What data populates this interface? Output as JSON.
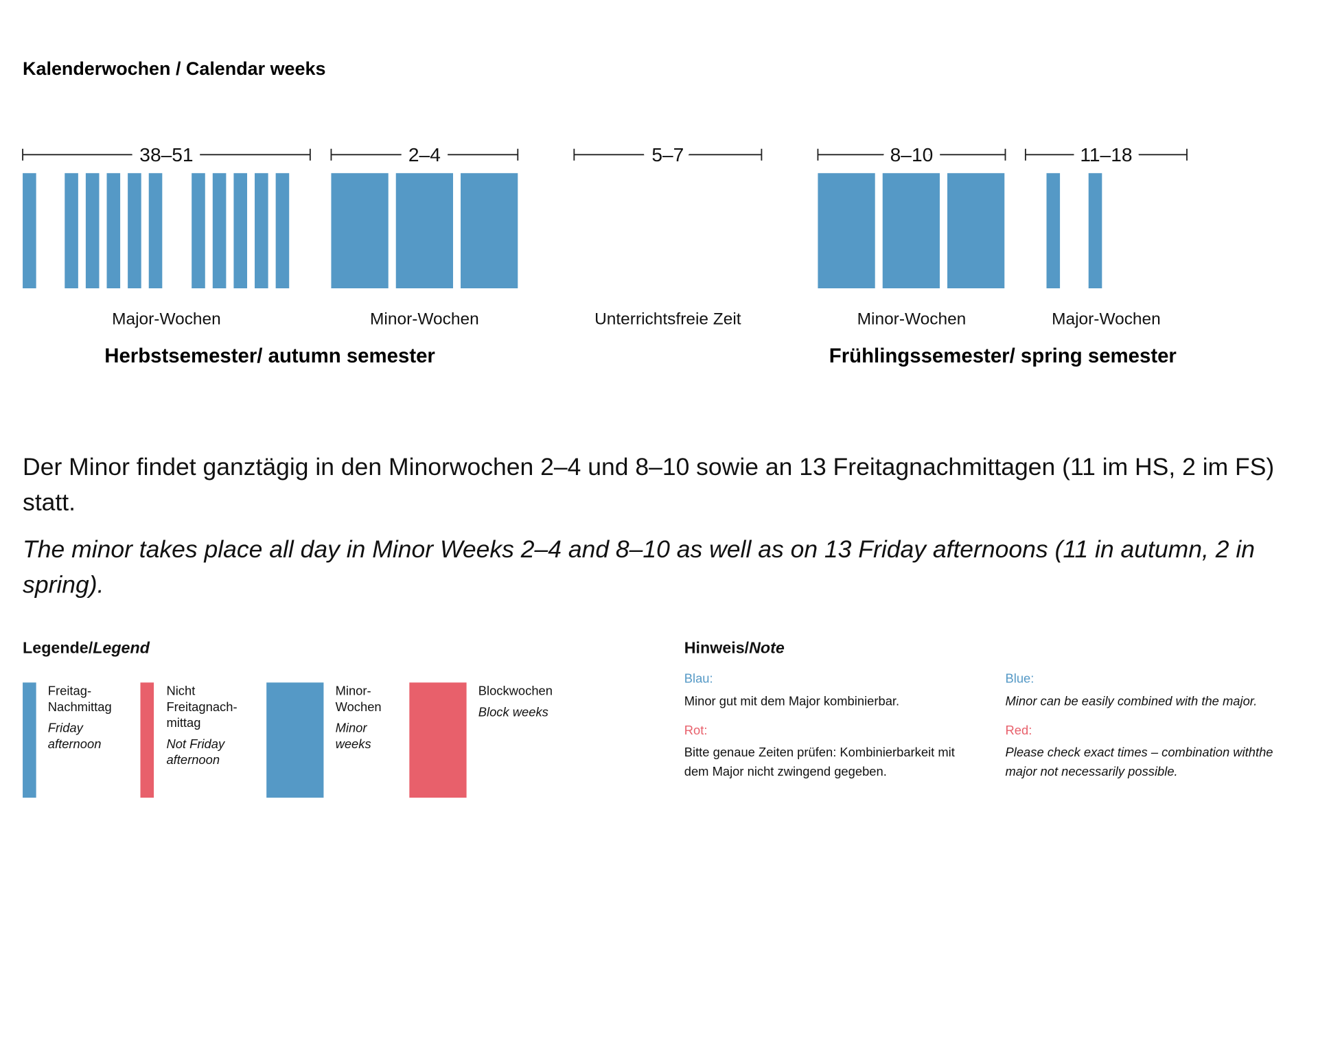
{
  "title": "Kalenderwochen / Calendar weeks",
  "periods": [
    {
      "weeks": "38–51",
      "label": "Major-Wochen"
    },
    {
      "weeks": "2–4",
      "label": "Minor-Wochen"
    },
    {
      "weeks": "5–7",
      "label": "Unterrichtsfreie Zeit"
    },
    {
      "weeks": "8–10",
      "label": "Minor-Wochen"
    },
    {
      "weeks": "11–18",
      "label": "Major-Wochen"
    }
  ],
  "semesters": [
    "Herbstsemester/ autumn semester",
    "Frühlingssemester/ spring semester"
  ],
  "paragraph_de": "Der Minor findet ganztägig in den Minorwochen 2–4 und 8–10 sowie an 13 Freitagnachmittagen (11 im HS, 2 im FS) statt.",
  "paragraph_en": "The minor takes place all day in Minor Weeks 2–4 and 8–10 as well as on 13 Friday afternoons (11 in autumn, 2 in spring).",
  "legend": {
    "title": "Legende/",
    "title_italic": "Legend",
    "items": [
      {
        "de": "Freitag-Nachmittag",
        "en": "Friday afternoon"
      },
      {
        "de": "Nicht Freitagnach-mittag",
        "en": "Not Friday afternoon"
      },
      {
        "de": "Minor-Wochen",
        "en": "Minor weeks"
      },
      {
        "de": "Blockwochen",
        "en": "Block weeks"
      }
    ]
  },
  "note": {
    "title": "Hinweis/",
    "title_italic": "Note",
    "blue_label_de": "Blau:",
    "blue_text_de": "Minor gut mit dem Major kombinierbar.",
    "red_label_de": "Rot:",
    "red_text_de": "Bitte genaue Zeiten prüfen: Kombinierbarkeit mit dem Major nicht zwingend gegeben.",
    "blue_label_en": "Blue:",
    "blue_text_en": "Minor can be easily combined with the major.",
    "red_label_en": "Red:",
    "red_text_en": "Please check exact times – combination withthe major not necessarily possible."
  }
}
